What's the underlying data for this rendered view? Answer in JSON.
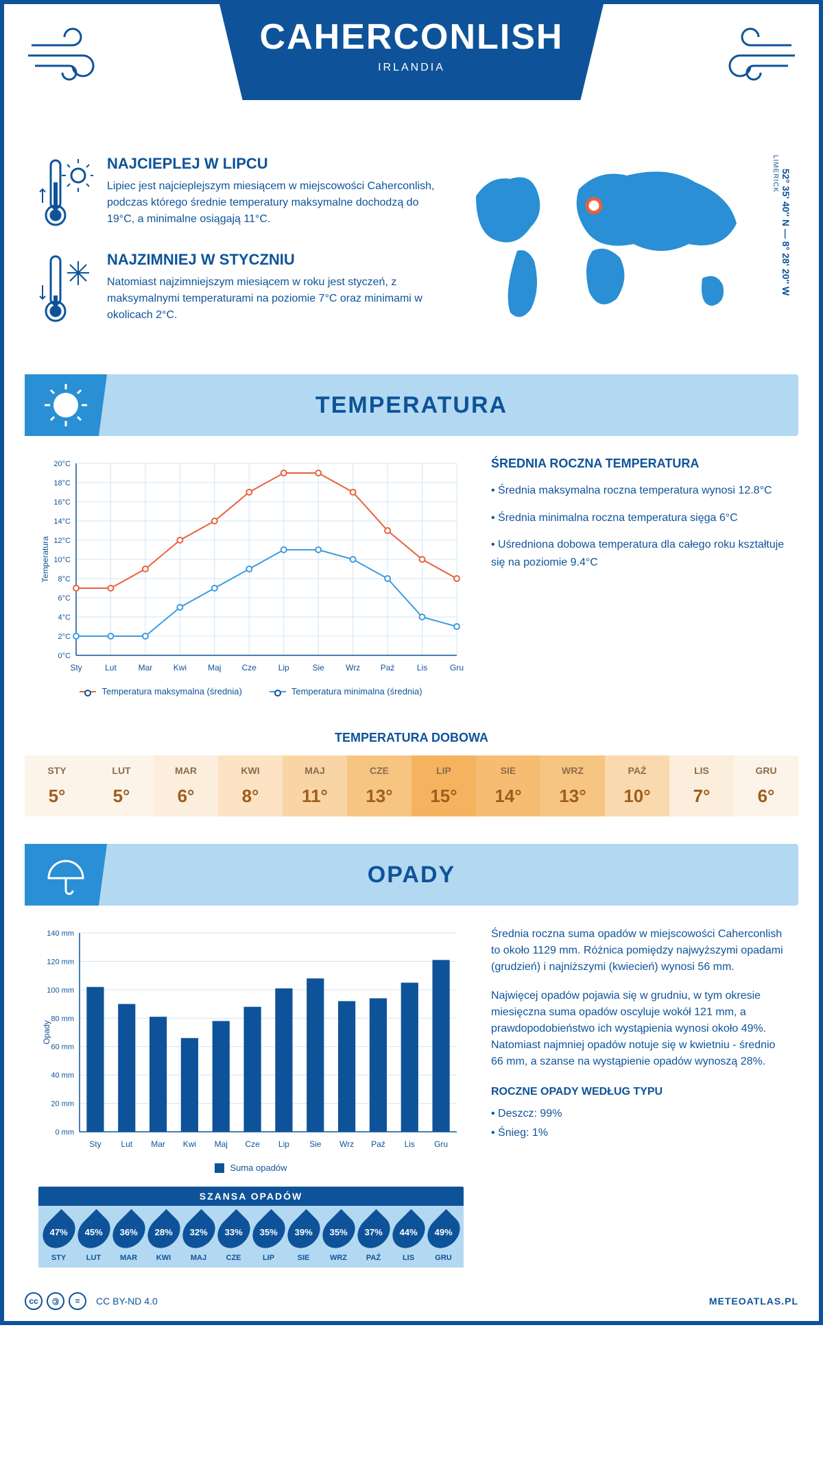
{
  "header": {
    "title": "CAHERCONLISH",
    "country": "IRLANDIA"
  },
  "coords": "52° 35' 40'' N — 8° 28' 20'' W",
  "region": "LIMERICK",
  "facts": {
    "hot": {
      "title": "NAJCIEPLEJ W LIPCU",
      "text": "Lipiec jest najcieplejszym miesiącem w miejscowości Caherconlish, podczas którego średnie temperatury maksymalne dochodzą do 19°C, a minimalne osiągają 11°C."
    },
    "cold": {
      "title": "NAJZIMNIEJ W STYCZNIU",
      "text": "Natomiast najzimniejszym miesiącem w roku jest styczeń, z maksymalnymi temperaturami na poziomie 7°C oraz minimami w okolicach 2°C."
    }
  },
  "sections": {
    "temperature_title": "TEMPERATURA",
    "precipitation_title": "OPADY"
  },
  "temp_chart": {
    "type": "line",
    "months": [
      "Sty",
      "Lut",
      "Mar",
      "Kwi",
      "Maj",
      "Cze",
      "Lip",
      "Sie",
      "Wrz",
      "Paź",
      "Lis",
      "Gru"
    ],
    "series": {
      "max": {
        "label": "Temperatura maksymalna (średnia)",
        "color": "#e8613c",
        "values": [
          7,
          7,
          9,
          12,
          14,
          17,
          19,
          19,
          17,
          13,
          10,
          8
        ]
      },
      "min": {
        "label": "Temperatura minimalna (średnia)",
        "color": "#3b9be0",
        "values": [
          2,
          2,
          2,
          5,
          7,
          9,
          11,
          11,
          10,
          8,
          4,
          3
        ]
      }
    },
    "ylabel": "Temperatura",
    "ylim": [
      0,
      20
    ],
    "ytick_step": 2,
    "grid_color": "#d0e5f5",
    "background": "#ffffff",
    "axis_color": "#0e5399",
    "label_fontsize": 12
  },
  "temp_info": {
    "title": "ŚREDNIA ROCZNA TEMPERATURA",
    "items": [
      "Średnia maksymalna roczna temperatura wynosi 12.8°C",
      "Średnia minimalna roczna temperatura sięga 6°C",
      "Uśredniona dobowa temperatura dla całego roku kształtuje się na poziomie 9.4°C"
    ]
  },
  "daily": {
    "title": "TEMPERATURA DOBOWA",
    "months": [
      "STY",
      "LUT",
      "MAR",
      "KWI",
      "MAJ",
      "CZE",
      "LIP",
      "SIE",
      "WRZ",
      "PAŹ",
      "LIS",
      "GRU"
    ],
    "values": [
      "5°",
      "5°",
      "6°",
      "8°",
      "11°",
      "13°",
      "15°",
      "14°",
      "13°",
      "10°",
      "7°",
      "6°"
    ],
    "bg_colors": [
      "#fdf4e9",
      "#fdf4e9",
      "#fceedd",
      "#fbe3c4",
      "#f9d5a6",
      "#f7c582",
      "#f5b35f",
      "#f6bd72",
      "#f7c582",
      "#fad9ae",
      "#fceedd",
      "#fdf4e9"
    ],
    "text_color": "#9e5e1e"
  },
  "precip_chart": {
    "type": "bar",
    "months": [
      "Sty",
      "Lut",
      "Mar",
      "Kwi",
      "Maj",
      "Cze",
      "Lip",
      "Sie",
      "Wrz",
      "Paź",
      "Lis",
      "Gru"
    ],
    "values": [
      102,
      90,
      81,
      66,
      78,
      88,
      101,
      108,
      92,
      94,
      105,
      121
    ],
    "bar_color": "#0e5399",
    "ylabel": "Opady",
    "ylim": [
      0,
      140
    ],
    "ytick_step": 20,
    "grid_color": "#d0e5f5",
    "legend_label": "Suma opadów",
    "bar_width": 0.55
  },
  "precip_text": {
    "p1": "Średnia roczna suma opadów w miejscowości Caherconlish to około 1129 mm. Różnica pomiędzy najwyższymi opadami (grudzień) i najniższymi (kwiecień) wynosi 56 mm.",
    "p2": "Najwięcej opadów pojawia się w grudniu, w tym okresie miesięczna suma opadów oscyluje wokół 121 mm, a prawdopodobieństwo ich wystąpienia wynosi około 49%. Natomiast najmniej opadów notuje się w kwietniu - średnio 66 mm, a szanse na wystąpienie opadów wynoszą 28%.",
    "type_title": "ROCZNE OPADY WEDŁUG TYPU",
    "types": [
      "Deszcz: 99%",
      "Śnieg: 1%"
    ]
  },
  "chance": {
    "title": "SZANSA OPADÓW",
    "months": [
      "STY",
      "LUT",
      "MAR",
      "KWI",
      "MAJ",
      "CZE",
      "LIP",
      "SIE",
      "WRZ",
      "PAŹ",
      "LIS",
      "GRU"
    ],
    "values": [
      "47%",
      "45%",
      "36%",
      "28%",
      "32%",
      "33%",
      "35%",
      "39%",
      "35%",
      "37%",
      "44%",
      "49%"
    ]
  },
  "footer": {
    "license": "CC BY-ND 4.0",
    "brand": "METEOATLAS.PL"
  },
  "colors": {
    "primary": "#0e5399",
    "light_blue": "#b3d9f2",
    "mid_blue": "#2a8fd4"
  }
}
